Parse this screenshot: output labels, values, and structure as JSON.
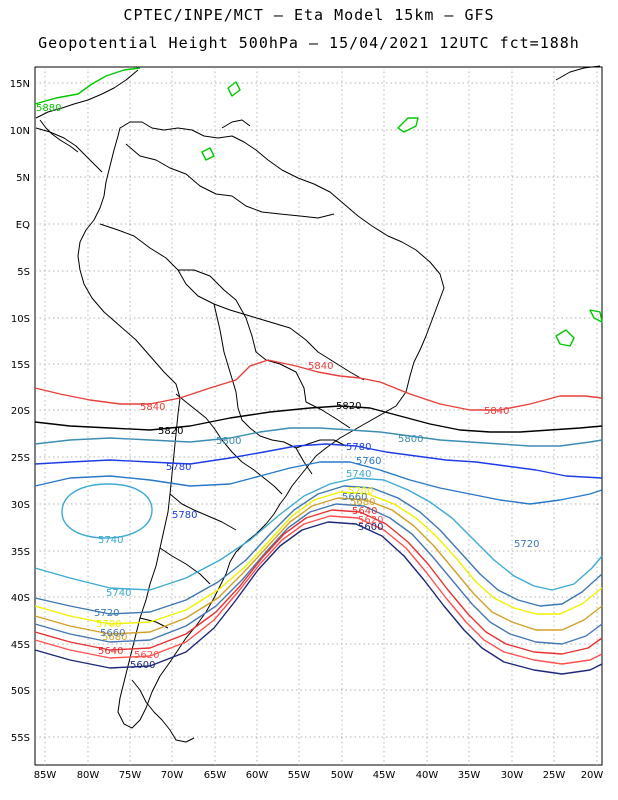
{
  "title_line1": "CPTEC/INPE/MCT –  Eta Model 15km – GFS",
  "title_line2": "Geopotential Height 500hPa – 15/04/2021 12UTC fct=188h",
  "lat_labels": [
    "15N",
    "10N",
    "5N",
    "EQ",
    "5S",
    "10S",
    "15S",
    "20S",
    "25S",
    "30S",
    "35S",
    "40S",
    "45S",
    "50S",
    "55S"
  ],
  "lon_labels": [
    "85W",
    "80W",
    "75W",
    "70W",
    "65W",
    "60W",
    "55W",
    "50W",
    "45W",
    "40W",
    "35W",
    "30W",
    "25W",
    "20W"
  ],
  "colors": {
    "5880": "#00c800",
    "5840": "#e8403c",
    "5820": "#000000",
    "5800": "#3c8cb4",
    "5780": "#1e3ce6",
    "5760": "#2878c8",
    "5740": "#3caad2",
    "5720": "#3c78b4",
    "5700": "#f0f000",
    "5680": "#d2a028",
    "5660": "#4678b4",
    "5640": "#e63232",
    "5620": "#ff5050",
    "5600": "#1e2878"
  },
  "contour_labels": [
    {
      "text": "5880",
      "color_key": "5880"
    },
    {
      "text": "5840",
      "color_key": "5840"
    },
    {
      "text": "5840",
      "color_key": "5840"
    },
    {
      "text": "5840",
      "color_key": "5840"
    },
    {
      "text": "5820",
      "color_key": "5820"
    },
    {
      "text": "5820",
      "color_key": "5820"
    },
    {
      "text": "5800",
      "color_key": "5800"
    },
    {
      "text": "5800",
      "color_key": "5800"
    },
    {
      "text": "5780",
      "color_key": "5780"
    },
    {
      "text": "5780",
      "color_key": "5780"
    },
    {
      "text": "5780",
      "color_key": "5780"
    },
    {
      "text": "5760",
      "color_key": "5760"
    },
    {
      "text": "5740",
      "color_key": "5740"
    },
    {
      "text": "5740",
      "color_key": "5740"
    },
    {
      "text": "5740",
      "color_key": "5740"
    },
    {
      "text": "5720",
      "color_key": "5720"
    },
    {
      "text": "5720",
      "color_key": "5720"
    },
    {
      "text": "5700",
      "color_key": "5700"
    },
    {
      "text": "5700",
      "color_key": "5700"
    },
    {
      "text": "5680",
      "color_key": "5680"
    },
    {
      "text": "5680",
      "color_key": "5680"
    },
    {
      "text": "5660",
      "color_key": "5660"
    },
    {
      "text": "5660",
      "color_key": "5660"
    },
    {
      "text": "5640",
      "color_key": "5640"
    },
    {
      "text": "5640",
      "color_key": "5640"
    },
    {
      "text": "5620",
      "color_key": "5620"
    },
    {
      "text": "5620",
      "color_key": "5620"
    },
    {
      "text": "5600",
      "color_key": "5600"
    },
    {
      "text": "5600",
      "color_key": "5600"
    }
  ]
}
